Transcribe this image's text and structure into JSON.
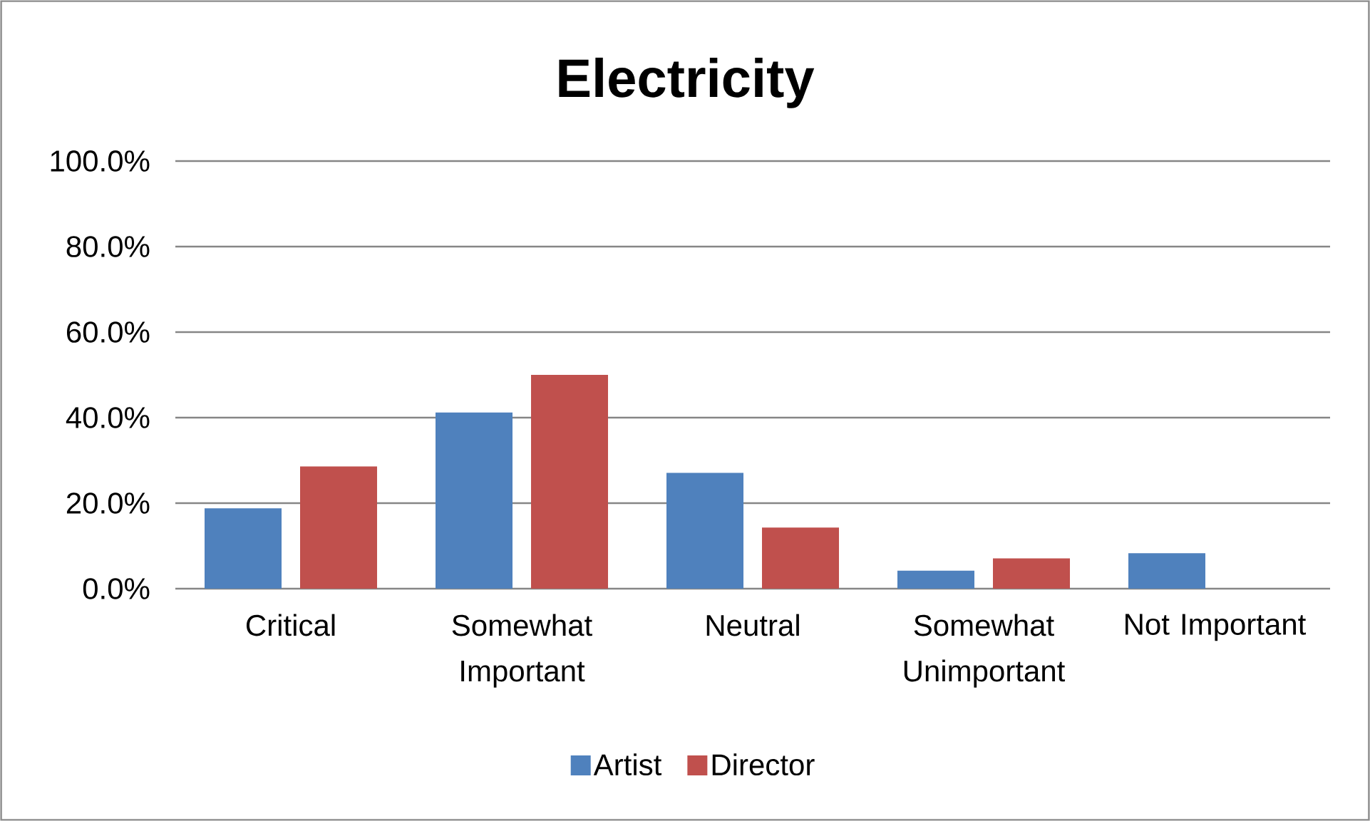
{
  "chart_data": {
    "type": "bar",
    "title": "Electricity",
    "categories": [
      "Critical",
      "Somewhat Important",
      "Neutral",
      "Somewhat Unimportant",
      "Not Important"
    ],
    "series": [
      {
        "name": "Artist",
        "color": "#4f81bd",
        "values": [
          18.8,
          41.2,
          27.1,
          4.2,
          8.3
        ]
      },
      {
        "name": "Director",
        "color": "#c0504d",
        "values": [
          28.6,
          50.0,
          14.3,
          7.1,
          0
        ]
      }
    ],
    "ylim": [
      0,
      100
    ],
    "yticks": [
      {
        "value": 0,
        "label": "0.0%"
      },
      {
        "value": 20,
        "label": "20.0%"
      },
      {
        "value": 40,
        "label": "40.0%"
      },
      {
        "value": 60,
        "label": "60.0%"
      },
      {
        "value": 80,
        "label": "80.0%"
      },
      {
        "value": 100,
        "label": "100.0%"
      }
    ],
    "grid": "y",
    "legend": "bottom"
  }
}
